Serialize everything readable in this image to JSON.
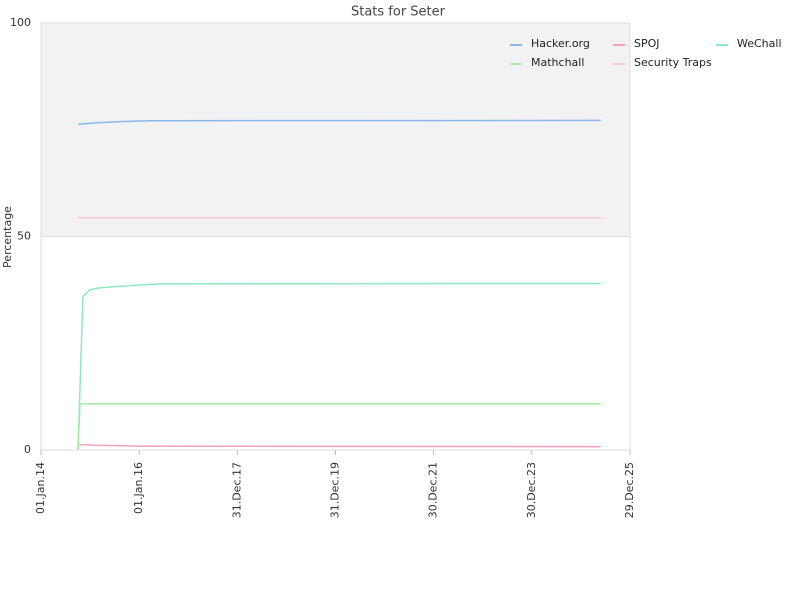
{
  "chart_data": {
    "type": "line",
    "title": "Stats for Seter",
    "y_label": "Percentage",
    "xlim": [
      "2014-01-01",
      "2025-12-29"
    ],
    "xticks": [
      {
        "value": "2014-01-01",
        "label": "01.Jan.14"
      },
      {
        "value": "2016-01-01",
        "label": "01.Jan.16"
      },
      {
        "value": "2017-12-31",
        "label": "31.Dec.17"
      },
      {
        "value": "2019-12-31",
        "label": "31.Dec.19"
      },
      {
        "value": "2021-12-30",
        "label": "30.Dec.21"
      },
      {
        "value": "2023-12-30",
        "label": "30.Dec.23"
      },
      {
        "value": "2025-12-29",
        "label": "29.Dec.25"
      }
    ],
    "ylim": [
      0,
      100
    ],
    "yticks": [
      0,
      50,
      100
    ],
    "grid": true,
    "legend": "top-right",
    "series": [
      {
        "name": "Hacker.org",
        "color": "#8ab8ec",
        "x": [
          "2014-10-03",
          "2015-02-07",
          "2015-08-11",
          "2016-03-21",
          "2025-05-26"
        ],
        "values": [
          76.3,
          76.6,
          76.9,
          77.1,
          77.2
        ]
      },
      {
        "name": "SPOJ",
        "color": "#f2a0bc",
        "x": [
          "2014-10-03",
          "2015-02-07",
          "2016-01-07",
          "2025-05-26"
        ],
        "values": [
          1.3,
          1.1,
          0.9,
          0.8
        ]
      },
      {
        "name": "WeChall",
        "color": "#8ee8c4",
        "x": [
          "2014-10-03",
          "2014-11-09",
          "2014-12-31",
          "2015-03-16",
          "2015-10-25",
          "2016-06-04",
          "2025-05-26"
        ],
        "values": [
          0,
          36,
          37.5,
          38,
          38.5,
          38.9,
          39
        ]
      },
      {
        "name": "Mathchall",
        "color": "#a4eaa4",
        "x": [
          "2014-10-03",
          "2014-10-18",
          "2025-05-26"
        ],
        "values": [
          0,
          10.8,
          10.8
        ]
      },
      {
        "name": "Security Traps",
        "color": "#f8c6d2",
        "x": [
          "2014-10-03",
          "2025-05-26"
        ],
        "values": [
          54.4,
          54.4
        ]
      }
    ]
  }
}
